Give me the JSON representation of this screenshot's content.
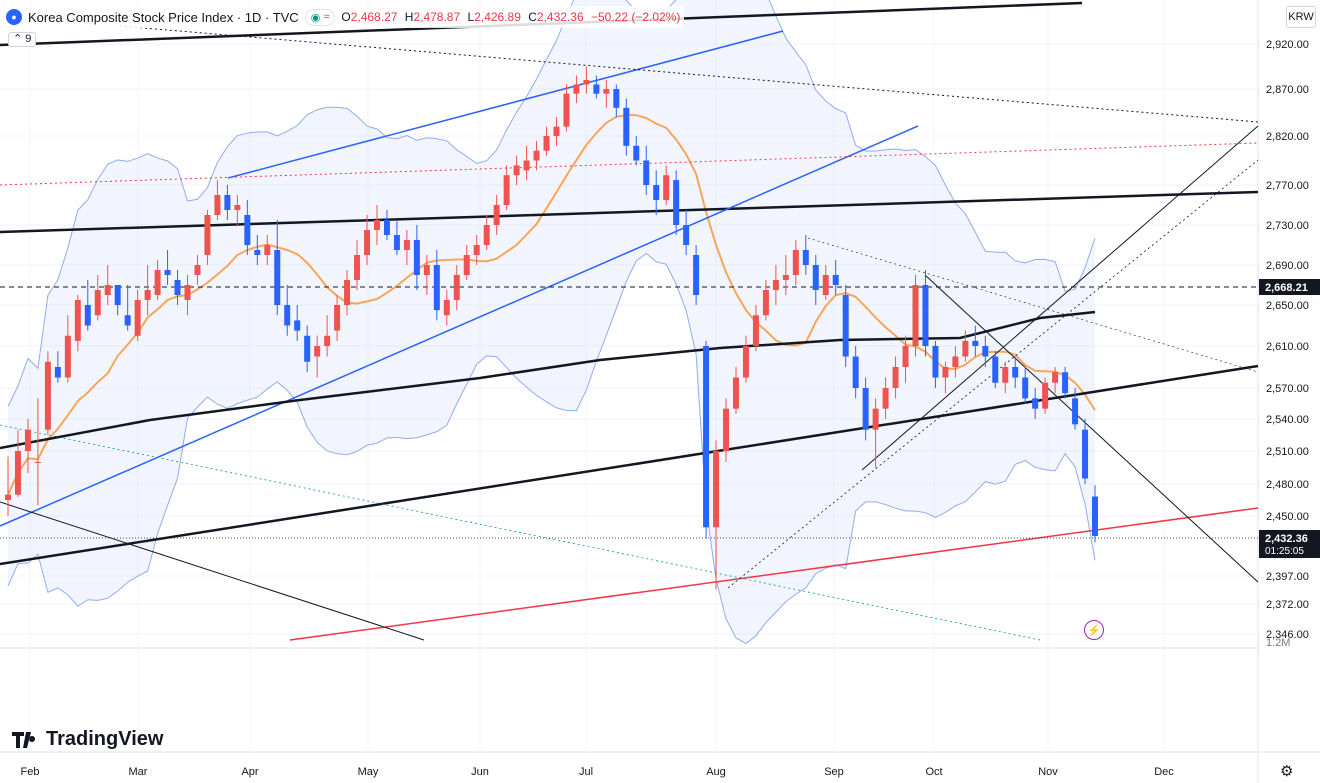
{
  "legend": {
    "title": "Korea Composite Stock Price Index · 1D · TVC",
    "pill_icons": [
      "green-dot-icon",
      "waves-icon"
    ],
    "ohlc": [
      {
        "k": "O",
        "v": "2,468.27"
      },
      {
        "k": "H",
        "v": "2,478.87"
      },
      {
        "k": "L",
        "v": "2,426.89"
      },
      {
        "k": "C",
        "v": "2,432.36"
      },
      {
        "k": "",
        "v": "−50.22 (−2.02%)"
      }
    ],
    "indicator_count": "9"
  },
  "currency": "KRW",
  "branding": "TradingView",
  "colors": {
    "up": "#ef5350",
    "down": "#2962ff",
    "sma50": "#f7a55b",
    "bb": "#90acf0"
  },
  "chart_data": {
    "type": "candlestick",
    "y_axis": {
      "ticks": [
        "2,920.00",
        "2,870.00",
        "2,820.00",
        "2,770.00",
        "2,730.00",
        "2,690.00",
        "2,650.00",
        "2,610.00",
        "2,570.00",
        "2,540.00",
        "2,510.00",
        "2,480.00",
        "2,450.00",
        "2,397.00",
        "2,372.00",
        "2,346.00"
      ],
      "scale": "log",
      "ylim": [
        2346,
        2920
      ],
      "extra_label": "1.2M"
    },
    "x_axis": {
      "ticks": [
        "Feb",
        "Mar",
        "Apr",
        "May",
        "Jun",
        "Jul",
        "Aug",
        "Sep",
        "Oct",
        "Nov",
        "Dec"
      ]
    },
    "last_price": {
      "value": "2,432.36",
      "countdown": "01:25:05"
    },
    "marked_level": "2,668.21",
    "candles": [
      [
        2465,
        2505,
        2450,
        2470
      ],
      [
        2470,
        2530,
        2468,
        2510
      ],
      [
        2510,
        2540,
        2490,
        2530
      ],
      [
        2500,
        2560,
        2460,
        2500
      ],
      [
        2530,
        2605,
        2525,
        2595
      ],
      [
        2590,
        2605,
        2575,
        2580
      ],
      [
        2580,
        2640,
        2575,
        2620
      ],
      [
        2615,
        2660,
        2605,
        2655
      ],
      [
        2650,
        2675,
        2625,
        2630
      ],
      [
        2640,
        2680,
        2635,
        2665
      ],
      [
        2660,
        2690,
        2650,
        2670
      ],
      [
        2670,
        2670,
        2640,
        2650
      ],
      [
        2640,
        2670,
        2625,
        2630
      ],
      [
        2620,
        2665,
        2615,
        2655
      ],
      [
        2655,
        2690,
        2640,
        2665
      ],
      [
        2660,
        2695,
        2655,
        2685
      ],
      [
        2685,
        2705,
        2670,
        2680
      ],
      [
        2675,
        2685,
        2650,
        2660
      ],
      [
        2655,
        2680,
        2640,
        2670
      ],
      [
        2680,
        2700,
        2670,
        2690
      ],
      [
        2700,
        2745,
        2690,
        2740
      ],
      [
        2740,
        2775,
        2735,
        2760
      ],
      [
        2760,
        2770,
        2735,
        2745
      ],
      [
        2745,
        2760,
        2730,
        2750
      ],
      [
        2740,
        2755,
        2700,
        2710
      ],
      [
        2705,
        2720,
        2690,
        2700
      ],
      [
        2700,
        2720,
        2690,
        2710
      ],
      [
        2705,
        2735,
        2640,
        2650
      ],
      [
        2650,
        2670,
        2620,
        2630
      ],
      [
        2635,
        2650,
        2615,
        2625
      ],
      [
        2620,
        2630,
        2585,
        2595
      ],
      [
        2600,
        2620,
        2580,
        2610
      ],
      [
        2610,
        2640,
        2600,
        2620
      ],
      [
        2625,
        2660,
        2615,
        2650
      ],
      [
        2650,
        2685,
        2640,
        2675
      ],
      [
        2675,
        2715,
        2665,
        2700
      ],
      [
        2700,
        2740,
        2690,
        2725
      ],
      [
        2725,
        2750,
        2710,
        2735
      ],
      [
        2735,
        2745,
        2715,
        2720
      ],
      [
        2720,
        2735,
        2700,
        2705
      ],
      [
        2705,
        2725,
        2690,
        2715
      ],
      [
        2715,
        2730,
        2665,
        2680
      ],
      [
        2680,
        2700,
        2660,
        2690
      ],
      [
        2690,
        2705,
        2635,
        2645
      ],
      [
        2640,
        2665,
        2630,
        2655
      ],
      [
        2655,
        2690,
        2645,
        2680
      ],
      [
        2680,
        2710,
        2675,
        2700
      ],
      [
        2700,
        2720,
        2690,
        2710
      ],
      [
        2710,
        2740,
        2705,
        2730
      ],
      [
        2730,
        2760,
        2720,
        2750
      ],
      [
        2750,
        2790,
        2745,
        2780
      ],
      [
        2780,
        2800,
        2770,
        2790
      ],
      [
        2785,
        2810,
        2775,
        2795
      ],
      [
        2795,
        2815,
        2785,
        2805
      ],
      [
        2805,
        2830,
        2800,
        2820
      ],
      [
        2820,
        2840,
        2810,
        2830
      ],
      [
        2830,
        2875,
        2825,
        2865
      ],
      [
        2865,
        2885,
        2855,
        2875
      ],
      [
        2875,
        2895,
        2865,
        2880
      ],
      [
        2875,
        2885,
        2860,
        2865
      ],
      [
        2865,
        2880,
        2850,
        2870
      ],
      [
        2870,
        2875,
        2840,
        2850
      ],
      [
        2850,
        2860,
        2800,
        2810
      ],
      [
        2810,
        2820,
        2790,
        2795
      ],
      [
        2795,
        2810,
        2760,
        2770
      ],
      [
        2770,
        2785,
        2740,
        2755
      ],
      [
        2755,
        2790,
        2750,
        2780
      ],
      [
        2775,
        2785,
        2720,
        2730
      ],
      [
        2730,
        2745,
        2700,
        2710
      ],
      [
        2700,
        2710,
        2650,
        2660
      ],
      [
        2610,
        2615,
        2430,
        2440
      ],
      [
        2440,
        2520,
        2385,
        2510
      ],
      [
        2510,
        2560,
        2500,
        2550
      ],
      [
        2550,
        2590,
        2545,
        2580
      ],
      [
        2580,
        2620,
        2575,
        2610
      ],
      [
        2610,
        2650,
        2605,
        2640
      ],
      [
        2640,
        2675,
        2635,
        2665
      ],
      [
        2665,
        2690,
        2650,
        2675
      ],
      [
        2675,
        2700,
        2660,
        2680
      ],
      [
        2680,
        2715,
        2670,
        2705
      ],
      [
        2705,
        2720,
        2680,
        2690
      ],
      [
        2690,
        2700,
        2650,
        2665
      ],
      [
        2660,
        2690,
        2655,
        2680
      ],
      [
        2680,
        2695,
        2660,
        2670
      ],
      [
        2660,
        2670,
        2590,
        2600
      ],
      [
        2600,
        2610,
        2560,
        2570
      ],
      [
        2570,
        2580,
        2520,
        2530
      ],
      [
        2530,
        2560,
        2495,
        2550
      ],
      [
        2550,
        2580,
        2540,
        2570
      ],
      [
        2570,
        2600,
        2560,
        2590
      ],
      [
        2590,
        2620,
        2575,
        2610
      ],
      [
        2610,
        2680,
        2600,
        2670
      ],
      [
        2670,
        2685,
        2600,
        2610
      ],
      [
        2610,
        2615,
        2570,
        2580
      ],
      [
        2580,
        2595,
        2565,
        2590
      ],
      [
        2590,
        2610,
        2580,
        2600
      ],
      [
        2600,
        2625,
        2595,
        2615
      ],
      [
        2615,
        2630,
        2600,
        2610
      ],
      [
        2610,
        2620,
        2590,
        2600
      ],
      [
        2600,
        2605,
        2570,
        2575
      ],
      [
        2575,
        2595,
        2565,
        2590
      ],
      [
        2590,
        2600,
        2570,
        2580
      ],
      [
        2580,
        2590,
        2555,
        2560
      ],
      [
        2560,
        2570,
        2540,
        2550
      ],
      [
        2550,
        2580,
        2545,
        2575
      ],
      [
        2575,
        2590,
        2565,
        2585
      ],
      [
        2585,
        2590,
        2560,
        2565
      ],
      [
        2560,
        2570,
        2530,
        2535
      ],
      [
        2530,
        2540,
        2480,
        2485
      ],
      [
        2468.27,
        2478.87,
        2426.89,
        2432.36
      ]
    ]
  }
}
